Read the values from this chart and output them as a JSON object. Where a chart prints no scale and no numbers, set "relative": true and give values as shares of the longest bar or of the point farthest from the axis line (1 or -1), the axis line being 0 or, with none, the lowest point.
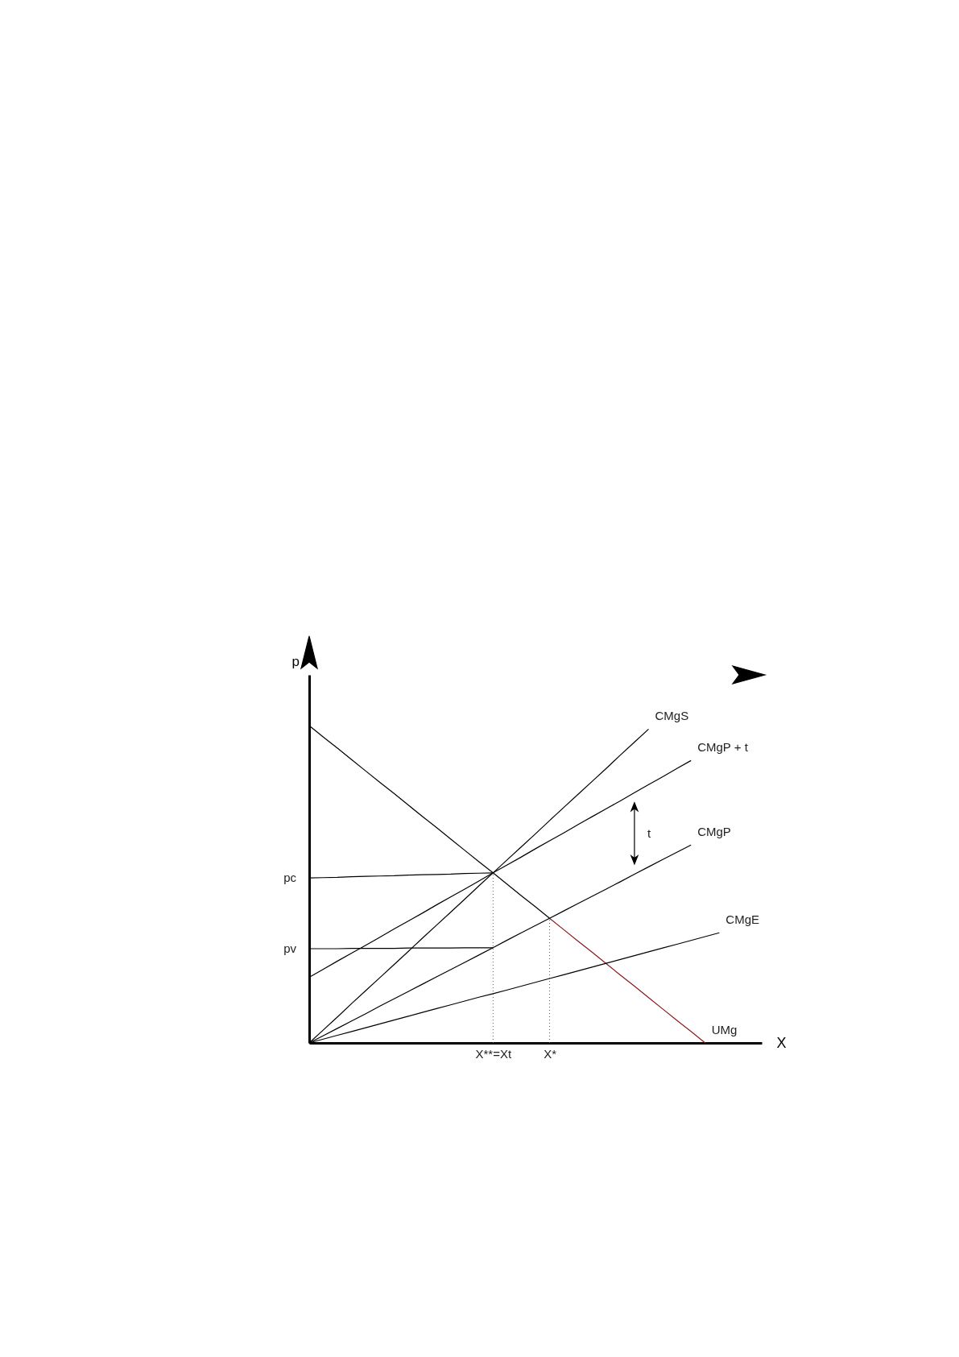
{
  "chart_data": {
    "type": "line",
    "relative": true,
    "xlabel": "X",
    "ylabel": "p",
    "marker": "none",
    "grid": false,
    "categories": [
      null,
      null,
      null,
      null,
      null,
      null,
      null,
      null,
      null,
      null,
      null,
      null,
      null,
      "X**=Xt",
      null,
      null,
      null,
      "X*",
      null,
      null,
      null,
      null,
      null,
      null,
      null,
      null,
      null,
      null,
      null,
      null,
      null,
      null,
      null
    ],
    "series": [
      {
        "color": "#000000",
        "values": [
          1,
          0.964,
          0.929,
          0.893,
          0.857,
          0.821,
          0.786,
          0.75,
          0.714,
          0.679,
          0.643,
          0.607,
          0.571,
          0.536,
          0.5,
          0.464,
          0.429,
          0.393,
          null,
          null,
          null,
          null,
          null,
          null,
          null,
          null,
          null,
          null,
          null,
          null,
          null,
          null,
          null
        ]
      },
      {
        "name": "UMg",
        "color": "#8b1a1a",
        "values": [
          null,
          null,
          null,
          null,
          null,
          null,
          null,
          null,
          null,
          null,
          null,
          null,
          null,
          null,
          null,
          null,
          null,
          0.393,
          0.357,
          0.321,
          0.286,
          0.25,
          0.214,
          0.179,
          0.143,
          0.107,
          0.071,
          0.036,
          0,
          null,
          null,
          null,
          null
        ]
      },
      {
        "name": "CMgS",
        "color": "#000000",
        "values": [
          0,
          0.041,
          0.082,
          0.124,
          0.165,
          0.206,
          0.247,
          0.288,
          0.33,
          0.371,
          0.412,
          0.453,
          0.495,
          0.536,
          0.577,
          0.618,
          0.659,
          0.701,
          0.742,
          0.783,
          0.824,
          0.865,
          0.907,
          0.948,
          0.989,
          null,
          null,
          null,
          null,
          null,
          null,
          null,
          null
        ]
      },
      {
        "name": "CMgP + t",
        "color": "#000000",
        "values": [
          0.207,
          0.232,
          0.258,
          0.283,
          0.308,
          0.333,
          0.359,
          0.384,
          0.409,
          0.435,
          0.46,
          0.485,
          0.51,
          0.536,
          0.561,
          0.586,
          0.612,
          0.637,
          0.662,
          0.688,
          0.713,
          0.738,
          0.763,
          0.789,
          0.814,
          0.839,
          0.865,
          0.89,
          null,
          null,
          null,
          null,
          null
        ]
      },
      {
        "name": "CMgP",
        "color": "#000000",
        "values": [
          0,
          0.023,
          0.046,
          0.069,
          0.092,
          0.116,
          0.139,
          0.162,
          0.185,
          0.208,
          0.231,
          0.254,
          0.277,
          0.3,
          0.324,
          0.347,
          0.37,
          0.393,
          0.416,
          0.439,
          0.462,
          0.485,
          0.508,
          0.532,
          0.555,
          0.578,
          0.601,
          0.624,
          null,
          null,
          null,
          null,
          null
        ]
      },
      {
        "name": "CMgE",
        "color": "#000000",
        "values": [
          0,
          0.012,
          0.024,
          0.036,
          0.048,
          0.06,
          0.072,
          0.084,
          0.096,
          0.108,
          0.12,
          0.132,
          0.144,
          0.155,
          0.167,
          0.179,
          0.191,
          0.203,
          0.215,
          0.227,
          0.239,
          0.251,
          0.263,
          0.275,
          0.287,
          0.299,
          0.311,
          0.323,
          0.335,
          0.347,
          null,
          null,
          null
        ]
      },
      {
        "name": "pc",
        "color": "#000000",
        "values": [
          0.52,
          0.521,
          0.522,
          0.524,
          0.525,
          0.526,
          0.527,
          0.529,
          0.53,
          0.531,
          0.532,
          0.534,
          0.535,
          0.536,
          null,
          null,
          null,
          null,
          null,
          null,
          null,
          null,
          null,
          null,
          null,
          null,
          null,
          null,
          null,
          null,
          null,
          null,
          null
        ]
      },
      {
        "name": "pv",
        "color": "#000000",
        "values": [
          0.297,
          0.297,
          0.297,
          0.298,
          0.298,
          0.298,
          0.298,
          0.299,
          0.299,
          0.299,
          0.299,
          0.3,
          0.3,
          0.3,
          null,
          null,
          null,
          null,
          null,
          null,
          null,
          null,
          null,
          null,
          null,
          null,
          null,
          null,
          null,
          null,
          null,
          null,
          null
        ]
      }
    ],
    "ref_lines": [
      {
        "axis": "x",
        "value": "X**=Xt",
        "color": "#555555",
        "line_style": "dotted"
      },
      {
        "axis": "x",
        "value": "X*",
        "color": "#555555",
        "line_style": "dotted"
      }
    ],
    "annotations": [
      "t"
    ]
  }
}
